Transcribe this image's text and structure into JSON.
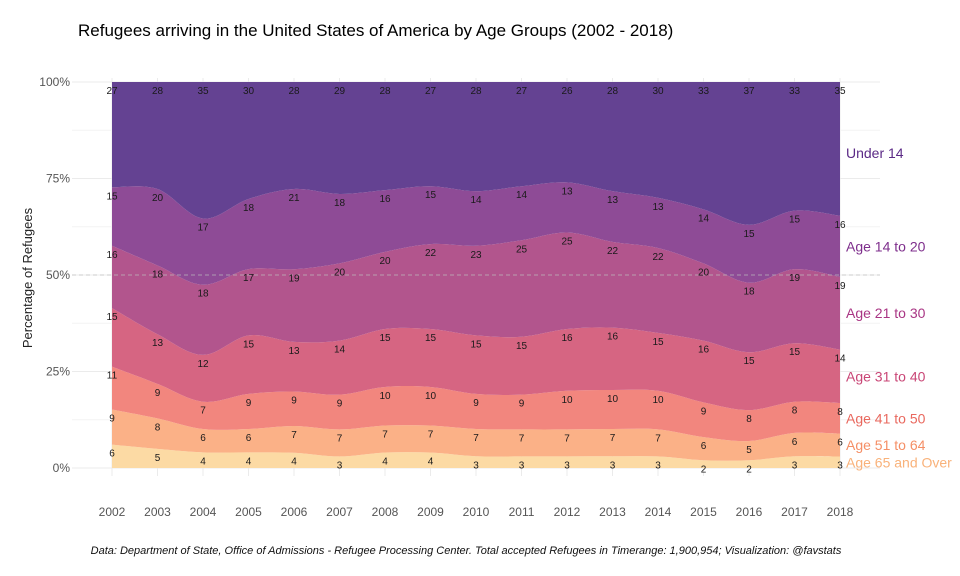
{
  "chart_data": {
    "type": "area",
    "stacked": true,
    "normalized": true,
    "title": "Refugees arriving in the United States of America by Age Groups (2002 - 2018)",
    "xlabel": "",
    "ylabel": "Percentage of Refugees",
    "y_ticks": [
      "0%",
      "25%",
      "50%",
      "75%",
      "100%"
    ],
    "ylim": [
      0,
      100
    ],
    "x": [
      "2002",
      "2003",
      "2004",
      "2005",
      "2006",
      "2007",
      "2008",
      "2009",
      "2010",
      "2011",
      "2012",
      "2013",
      "2014",
      "2015",
      "2016",
      "2017",
      "2018"
    ],
    "series": [
      {
        "name": "Age 65 and Over",
        "color": "#FCD9A1",
        "values": [
          6,
          5,
          4,
          4,
          4,
          3,
          4,
          4,
          3,
          3,
          3,
          3,
          3,
          2,
          2,
          3,
          3
        ]
      },
      {
        "name": "Age 51 to 64",
        "color": "#FBAE83",
        "values": [
          9,
          8,
          6,
          6,
          7,
          7,
          7,
          7,
          7,
          7,
          7,
          7,
          7,
          6,
          5,
          6,
          6
        ]
      },
      {
        "name": "Age 41 to 50",
        "color": "#F2827A",
        "values": [
          11,
          9,
          7,
          9,
          9,
          9,
          10,
          10,
          9,
          9,
          10,
          10,
          10,
          9,
          8,
          8,
          8
        ]
      },
      {
        "name": "Age 31 to 40",
        "color": "#D5607E",
        "values": [
          15,
          13,
          12,
          15,
          13,
          14,
          15,
          15,
          15,
          15,
          16,
          16,
          15,
          16,
          15,
          15,
          14
        ]
      },
      {
        "name": "Age 21 to 30",
        "color": "#AF5089",
        "values": [
          16,
          18,
          18,
          17,
          19,
          20,
          20,
          22,
          23,
          25,
          25,
          22,
          22,
          20,
          18,
          19,
          19
        ]
      },
      {
        "name": "Age 14 to 20",
        "color": "#8A4593",
        "values": [
          15,
          20,
          17,
          18,
          21,
          18,
          16,
          15,
          14,
          14,
          13,
          13,
          13,
          14,
          15,
          15,
          16
        ]
      },
      {
        "name": "Under 14",
        "color": "#5F3C8E",
        "values": [
          27,
          28,
          35,
          30,
          28,
          29,
          28,
          27,
          28,
          27,
          26,
          28,
          30,
          33,
          37,
          33,
          35
        ]
      }
    ],
    "label_colors": {
      "Under 14": "#5B2A86",
      "Age 14 to 20": "#7E2E8C",
      "Age 21 to 30": "#A93584",
      "Age 31 to 40": "#C94676",
      "Age 41 to 50": "#E9685E",
      "Age 51 to 64": "#F58F66",
      "Age 65 and Over": "#F9B27A"
    },
    "caption": "Data: Department of State, Office of Admissions - Refugee Processing Center. Total accepted Refugees in Timerange: 1,900,954; Visualization: @favstats"
  }
}
